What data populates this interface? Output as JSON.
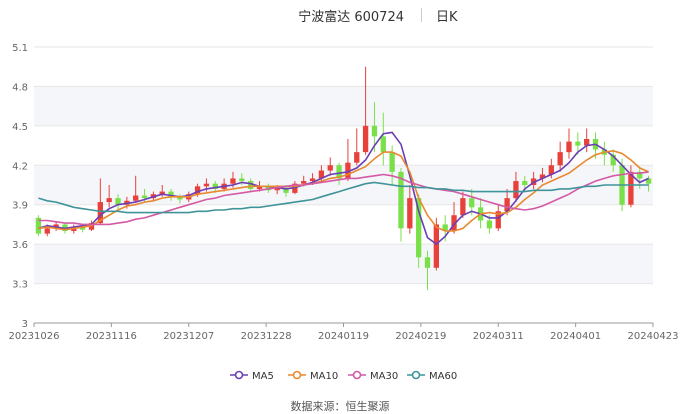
{
  "header": {
    "title": "宁波富达 600724",
    "period": "日K"
  },
  "source": "数据来源：恒生聚源",
  "chart_data": {
    "type": "candlestick",
    "x_ticks": [
      "20231026",
      "20231116",
      "20231207",
      "20231228",
      "20240119",
      "20240219",
      "20240311",
      "20240401",
      "20240423"
    ],
    "y_ticks": [
      "3",
      "3.3",
      "3.6",
      "3.9",
      "4.2",
      "4.5",
      "4.8",
      "5.1"
    ],
    "ylim": [
      3,
      5.1
    ],
    "grid": true,
    "legend_position": "bottom",
    "colors": {
      "up": "#e8403a",
      "down": "#7ae04a",
      "ma5": "#6a3fb5",
      "ma10": "#e8892f",
      "ma30": "#d45aa5",
      "ma60": "#3f9499"
    },
    "legend": [
      {
        "key": "ma5",
        "label": "MA5"
      },
      {
        "key": "ma10",
        "label": "MA10"
      },
      {
        "key": "ma30",
        "label": "MA30"
      },
      {
        "key": "ma60",
        "label": "MA60"
      }
    ],
    "ma5": [
      3.72,
      3.74,
      3.73,
      3.72,
      3.73,
      3.74,
      3.75,
      3.82,
      3.87,
      3.9,
      3.91,
      3.92,
      3.94,
      3.96,
      3.98,
      3.97,
      3.96,
      3.97,
      4.0,
      4.02,
      4.03,
      4.04,
      4.05,
      4.07,
      4.06,
      4.04,
      4.04,
      4.03,
      4.02,
      4.03,
      4.05,
      4.07,
      4.1,
      4.13,
      4.14,
      4.15,
      4.18,
      4.24,
      4.35,
      4.44,
      4.45,
      4.36,
      4.12,
      3.85,
      3.65,
      3.6,
      3.66,
      3.75,
      3.82,
      3.85,
      3.83,
      3.8,
      3.8,
      3.85,
      3.93,
      4.02,
      4.07,
      4.1,
      4.13,
      4.16,
      4.22,
      4.3,
      4.35,
      4.36,
      4.32,
      4.27,
      4.2,
      4.13,
      4.07,
      4.1
    ],
    "ma10": [
      3.72,
      3.73,
      3.72,
      3.71,
      3.72,
      3.73,
      3.74,
      3.78,
      3.82,
      3.86,
      3.89,
      3.9,
      3.92,
      3.93,
      3.95,
      3.96,
      3.96,
      3.96,
      3.98,
      3.99,
      4.0,
      4.01,
      4.02,
      4.03,
      4.04,
      4.04,
      4.04,
      4.04,
      4.04,
      4.04,
      4.05,
      4.06,
      4.08,
      4.1,
      4.11,
      4.13,
      4.16,
      4.19,
      4.25,
      4.3,
      4.3,
      4.27,
      4.15,
      3.95,
      3.82,
      3.73,
      3.7,
      3.7,
      3.72,
      3.78,
      3.83,
      3.84,
      3.83,
      3.84,
      3.88,
      3.94,
      3.99,
      4.05,
      4.08,
      4.11,
      4.14,
      4.19,
      4.24,
      4.28,
      4.3,
      4.31,
      4.29,
      4.24,
      4.18,
      4.15
    ],
    "ma30": [
      3.78,
      3.78,
      3.77,
      3.76,
      3.76,
      3.75,
      3.75,
      3.75,
      3.75,
      3.76,
      3.77,
      3.79,
      3.8,
      3.82,
      3.84,
      3.86,
      3.88,
      3.9,
      3.92,
      3.94,
      3.95,
      3.97,
      3.98,
      3.99,
      4.0,
      4.01,
      4.02,
      4.03,
      4.04,
      4.05,
      4.05,
      4.06,
      4.07,
      4.08,
      4.09,
      4.1,
      4.1,
      4.11,
      4.12,
      4.13,
      4.12,
      4.1,
      4.07,
      4.05,
      4.03,
      4.02,
      4.01,
      4.0,
      3.98,
      3.96,
      3.94,
      3.92,
      3.9,
      3.88,
      3.87,
      3.86,
      3.87,
      3.89,
      3.92,
      3.95,
      3.98,
      4.02,
      4.05,
      4.08,
      4.1,
      4.12,
      4.13,
      4.14,
      4.14,
      4.15
    ],
    "ma60": [
      3.95,
      3.93,
      3.92,
      3.9,
      3.88,
      3.87,
      3.86,
      3.85,
      3.85,
      3.85,
      3.84,
      3.84,
      3.84,
      3.84,
      3.84,
      3.84,
      3.84,
      3.84,
      3.85,
      3.85,
      3.86,
      3.86,
      3.87,
      3.87,
      3.88,
      3.88,
      3.89,
      3.9,
      3.91,
      3.92,
      3.93,
      3.94,
      3.96,
      3.98,
      4.0,
      4.02,
      4.04,
      4.06,
      4.07,
      4.06,
      4.05,
      4.04,
      4.04,
      4.03,
      4.03,
      4.02,
      4.02,
      4.01,
      4.01,
      4.0,
      4.0,
      4.0,
      4.0,
      4.0,
      4.0,
      4.0,
      4.01,
      4.01,
      4.01,
      4.02,
      4.02,
      4.03,
      4.04,
      4.04,
      4.05,
      4.05,
      4.05,
      4.05,
      4.05,
      4.05
    ],
    "ohlc": [
      [
        3.8,
        3.68,
        3.82,
        3.66
      ],
      [
        3.68,
        3.72,
        3.75,
        3.66
      ],
      [
        3.72,
        3.75,
        3.77,
        3.7
      ],
      [
        3.75,
        3.7,
        3.76,
        3.68
      ],
      [
        3.7,
        3.73,
        3.75,
        3.68
      ],
      [
        3.73,
        3.71,
        3.75,
        3.69
      ],
      [
        3.71,
        3.76,
        3.78,
        3.7
      ],
      [
        3.76,
        3.92,
        4.1,
        3.75
      ],
      [
        3.92,
        3.95,
        4.05,
        3.88
      ],
      [
        3.95,
        3.9,
        3.98,
        3.85
      ],
      [
        3.9,
        3.93,
        3.96,
        3.87
      ],
      [
        3.93,
        3.97,
        4.12,
        3.92
      ],
      [
        3.97,
        3.95,
        4.02,
        3.92
      ],
      [
        3.95,
        3.98,
        4.0,
        3.93
      ],
      [
        3.98,
        4.0,
        4.05,
        3.96
      ],
      [
        4.0,
        3.96,
        4.02,
        3.93
      ],
      [
        3.96,
        3.94,
        3.98,
        3.91
      ],
      [
        3.94,
        3.98,
        4.0,
        3.92
      ],
      [
        3.98,
        4.04,
        4.06,
        3.96
      ],
      [
        4.04,
        4.06,
        4.1,
        4.0
      ],
      [
        4.06,
        4.02,
        4.08,
        3.99
      ],
      [
        4.02,
        4.06,
        4.1,
        4.0
      ],
      [
        4.06,
        4.1,
        4.15,
        4.03
      ],
      [
        4.1,
        4.08,
        4.14,
        4.05
      ],
      [
        4.08,
        4.02,
        4.1,
        4.0
      ],
      [
        4.02,
        4.04,
        4.08,
        4.0
      ],
      [
        4.04,
        4.01,
        4.06,
        3.99
      ],
      [
        4.01,
        4.03,
        4.05,
        3.98
      ],
      [
        4.03,
        3.99,
        4.05,
        3.96
      ],
      [
        3.99,
        4.06,
        4.08,
        3.98
      ],
      [
        4.06,
        4.08,
        4.12,
        4.04
      ],
      [
        4.08,
        4.1,
        4.14,
        4.05
      ],
      [
        4.1,
        4.16,
        4.2,
        4.08
      ],
      [
        4.16,
        4.2,
        4.26,
        4.12
      ],
      [
        4.2,
        4.1,
        4.22,
        4.05
      ],
      [
        4.1,
        4.22,
        4.4,
        4.08
      ],
      [
        4.22,
        4.3,
        4.48,
        4.2
      ],
      [
        4.3,
        4.5,
        4.95,
        4.28
      ],
      [
        4.5,
        4.42,
        4.68,
        4.3
      ],
      [
        4.42,
        4.3,
        4.6,
        4.2
      ],
      [
        4.3,
        4.15,
        4.35,
        4.05
      ],
      [
        4.15,
        3.72,
        4.18,
        3.62
      ],
      [
        3.72,
        3.95,
        4.05,
        3.68
      ],
      [
        3.95,
        3.5,
        3.98,
        3.42
      ],
      [
        3.5,
        3.42,
        3.55,
        3.25
      ],
      [
        3.42,
        3.75,
        3.8,
        3.4
      ],
      [
        3.75,
        3.7,
        3.82,
        3.62
      ],
      [
        3.7,
        3.82,
        3.92,
        3.68
      ],
      [
        3.82,
        3.95,
        4.0,
        3.8
      ],
      [
        3.95,
        3.88,
        4.02,
        3.82
      ],
      [
        3.88,
        3.78,
        3.95,
        3.72
      ],
      [
        3.78,
        3.72,
        3.82,
        3.68
      ],
      [
        3.72,
        3.85,
        3.9,
        3.7
      ],
      [
        3.85,
        3.95,
        4.02,
        3.82
      ],
      [
        3.95,
        4.08,
        4.15,
        3.92
      ],
      [
        4.08,
        4.05,
        4.12,
        4.0
      ],
      [
        4.05,
        4.1,
        4.15,
        4.02
      ],
      [
        4.1,
        4.13,
        4.18,
        4.07
      ],
      [
        4.13,
        4.2,
        4.25,
        4.1
      ],
      [
        4.2,
        4.3,
        4.38,
        4.15
      ],
      [
        4.3,
        4.38,
        4.48,
        4.25
      ],
      [
        4.38,
        4.35,
        4.45,
        4.28
      ],
      [
        4.35,
        4.4,
        4.48,
        4.3
      ],
      [
        4.4,
        4.32,
        4.45,
        4.25
      ],
      [
        4.32,
        4.28,
        4.38,
        4.2
      ],
      [
        4.28,
        4.2,
        4.32,
        4.15
      ],
      [
        4.2,
        3.9,
        4.25,
        3.85
      ],
      [
        3.9,
        4.15,
        4.2,
        3.88
      ],
      [
        4.15,
        4.1,
        4.18,
        4.02
      ],
      [
        4.1,
        4.06,
        4.12,
        4.0
      ]
    ]
  }
}
